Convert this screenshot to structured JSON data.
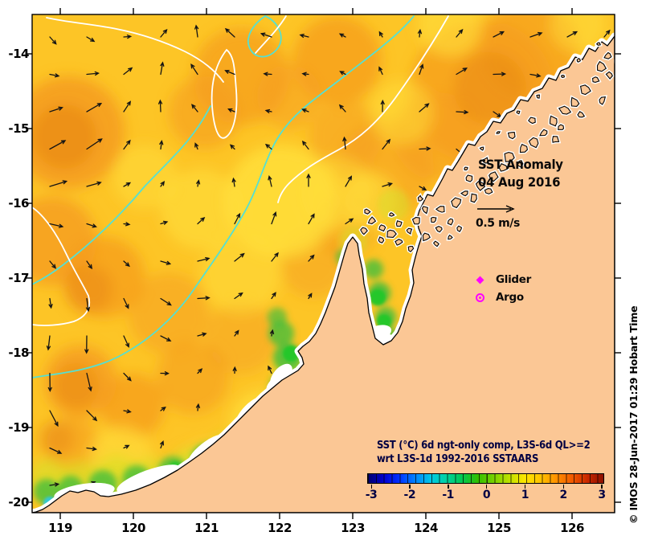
{
  "figure": {
    "title_line1": "SST Anomaly",
    "title_line2": "04 Aug 2016",
    "scale_label": "0.5 m/s",
    "legend": {
      "glider_label": "Glider",
      "argo_label": "Argo"
    },
    "caption_line1": "SST (°C) 6d ngt-only comp, L3S-6d QL>=2",
    "caption_line2": "wrt L3S-1d 1992-2016 SSTAARS",
    "watermark": "© IMOS 28-Jun-2017 01:29 Hobart Time"
  },
  "axes": {
    "x_ticks": [
      "119",
      "120",
      "121",
      "122",
      "123",
      "124",
      "125",
      "126"
    ],
    "y_ticks": [
      "-14",
      "-15",
      "-16",
      "-17",
      "-18",
      "-19",
      "-20"
    ]
  },
  "colorbar": {
    "tick_labels": [
      "-3",
      "-2",
      "-1",
      "0",
      "1",
      "2",
      "3"
    ],
    "gradient_stops": [
      "#00006E",
      "#0000D0",
      "#0032FF",
      "#0082FF",
      "#00C8E6",
      "#00D2A0",
      "#00C850",
      "#32BE00",
      "#78D200",
      "#BEE100",
      "#FFE600",
      "#FFC300",
      "#FF9100",
      "#F25A00",
      "#C82800",
      "#8C1000"
    ]
  },
  "colors": {
    "land": "#FBC795",
    "ocean": "#FDC526",
    "orange": "#F59C1E",
    "deeporange": "#E8860F",
    "lightyellow": "#FFE03C",
    "yellowgreen": "#D8E028",
    "green": "#46BE3C",
    "brightgreen": "#1EC828",
    "cyanspot": "#2EC8E6",
    "bluespot": "#1E5AD2",
    "contourcyan": "#55E0D2",
    "contourwhite": "#FFFFFF",
    "magenta": "#FF00FF",
    "navy": "#000042"
  }
}
